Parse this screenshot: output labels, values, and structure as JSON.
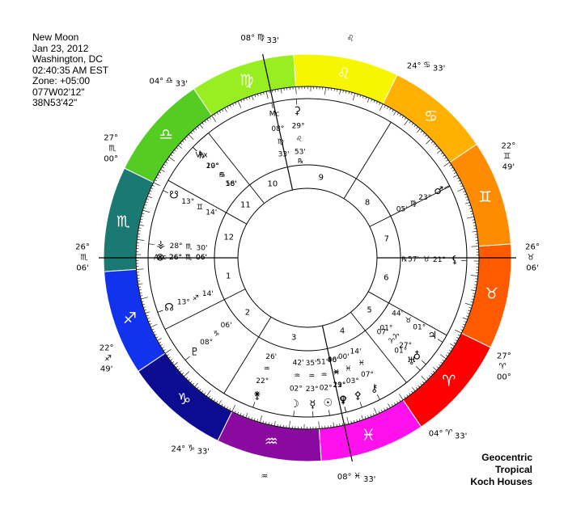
{
  "chart_info": [
    "New Moon",
    "Jan 23, 2012",
    "Washington, DC",
    "02:40:35 AM EST",
    "Zone: +05:00",
    "077W02'12\"",
    "38N53'42\""
  ],
  "footer": [
    "Geocentric",
    "Tropical",
    "Koch Houses"
  ],
  "zodiac": [
    {
      "glyph": "♈",
      "name": "aries",
      "color": "#ff0000"
    },
    {
      "glyph": "♉",
      "name": "taurus",
      "color": "#ff5a00"
    },
    {
      "glyph": "♊",
      "name": "gemini",
      "color": "#ff8c00"
    },
    {
      "glyph": "♋",
      "name": "cancer",
      "color": "#ffb000"
    },
    {
      "glyph": "♌",
      "name": "leo",
      "color": "#f6f600"
    },
    {
      "glyph": "♍",
      "name": "virgo",
      "color": "#99ee22"
    },
    {
      "glyph": "♎",
      "name": "libra",
      "color": "#55cc22"
    },
    {
      "glyph": "♏",
      "name": "scorpio",
      "color": "#1a7a73"
    },
    {
      "glyph": "♐",
      "name": "sagittarius",
      "color": "#1133ee"
    },
    {
      "glyph": "♑",
      "name": "capricorn",
      "color": "#0c0c90"
    },
    {
      "glyph": "♒",
      "name": "aquarius",
      "color": "#8a0aa0"
    },
    {
      "glyph": "♓",
      "name": "pisces",
      "color": "#ff11ee"
    }
  ],
  "houses": [
    {
      "number": "1",
      "deg": "26°",
      "sign": "♏",
      "min": "06'"
    },
    {
      "number": "2",
      "deg": "22°",
      "sign": "♐",
      "min": "49'"
    },
    {
      "number": "3",
      "deg": "24°",
      "sign": "♑",
      "min": "33'"
    },
    {
      "number": "4",
      "deg": "08°",
      "sign": "♓",
      "min": "33'"
    },
    {
      "number": "5",
      "deg": "04°",
      "sign": "♈",
      "min": "33'"
    },
    {
      "number": "6",
      "deg": "27°",
      "sign": "♈",
      "min": "00°"
    },
    {
      "number": "7",
      "deg": "26°",
      "sign": "♉",
      "min": "06'"
    },
    {
      "number": "8",
      "deg": "22°",
      "sign": "♊",
      "min": "49'"
    },
    {
      "number": "9",
      "deg": "24°",
      "sign": "♋",
      "min": "33'"
    },
    {
      "number": "10",
      "deg": "08°",
      "sign": "♍",
      "min": "33'"
    },
    {
      "number": "11",
      "deg": "04°",
      "sign": "♎",
      "min": "33'"
    },
    {
      "number": "12",
      "deg": "27°",
      "sign": "♏",
      "min": "00°"
    }
  ],
  "points": [
    {
      "name": "mars",
      "glyph": "♂",
      "deg": "23°",
      "sign": "♍",
      "min": "05'"
    },
    {
      "name": "ceres",
      "glyph": "⚳",
      "deg": "29°",
      "sign": "♌",
      "min": "53'",
      "retro": "℞"
    },
    {
      "name": "midheaven",
      "glyph": "Mc",
      "deg": "08°",
      "sign": "♍",
      "min": "33'"
    },
    {
      "name": "vertex",
      "glyph": "Vtx",
      "deg": "10°",
      "sign": "♋",
      "min": "56'"
    },
    {
      "name": "saturn",
      "glyph": "♄",
      "deg": "29°",
      "sign": "♎",
      "min": "18'"
    },
    {
      "name": "ascendant",
      "glyph": "Asc",
      "deg": "26°",
      "sign": "♏",
      "min": "06'"
    },
    {
      "name": "part-of-fortune",
      "glyph": "⊗",
      "deg": "26°",
      "sign": "♏",
      "min": "06'"
    },
    {
      "name": "vesta",
      "glyph": "⚶",
      "deg": "28°",
      "sign": "♏",
      "min": "30'"
    },
    {
      "name": "north-node",
      "glyph": "☊",
      "deg": "13°",
      "sign": "♐",
      "min": "14'"
    },
    {
      "name": "pluto",
      "glyph": "♇",
      "deg": "08°",
      "sign": "♑",
      "min": "06'"
    },
    {
      "name": "moon",
      "glyph": "☽",
      "deg": "02°",
      "sign": "♒",
      "min": "42'"
    },
    {
      "name": "sun",
      "glyph": "☉",
      "deg": "02°",
      "sign": "♒",
      "min": "51'"
    },
    {
      "name": "juno",
      "glyph": "⚵",
      "deg": "22°",
      "sign": "♒",
      "min": "26'"
    },
    {
      "name": "mercury",
      "glyph": "☿",
      "deg": "23°",
      "sign": "♒",
      "min": "35'"
    },
    {
      "name": "neptune",
      "glyph": "♆",
      "deg": "29°",
      "sign": "♒",
      "min": "06'"
    },
    {
      "name": "pallas",
      "glyph": "⚴",
      "deg": "03°",
      "sign": "♓",
      "min": "00'"
    },
    {
      "name": "venus",
      "glyph": "♀",
      "deg": "11°",
      "sign": "♓",
      "min": "40'"
    },
    {
      "name": "chiron",
      "glyph": "⚷",
      "deg": "07°",
      "sign": "♓",
      "min": "14'"
    },
    {
      "name": "eris",
      "glyph": "♁",
      "deg": "27°",
      "sign": "♈",
      "min": "01°"
    },
    {
      "name": "uranus",
      "glyph": "♅",
      "deg": "01°",
      "sign": "♈",
      "min": "07'"
    },
    {
      "name": "jupiter",
      "glyph": "♃",
      "deg": "01°",
      "sign": "♉",
      "min": "44'"
    },
    {
      "name": "lilith",
      "glyph": "⚸",
      "deg": "21°",
      "sign": "♉",
      "min": "57'",
      "retro": "℞"
    },
    {
      "name": "south-node",
      "glyph": "☋",
      "deg": "13°",
      "sign": "♊",
      "min": "14'"
    }
  ]
}
